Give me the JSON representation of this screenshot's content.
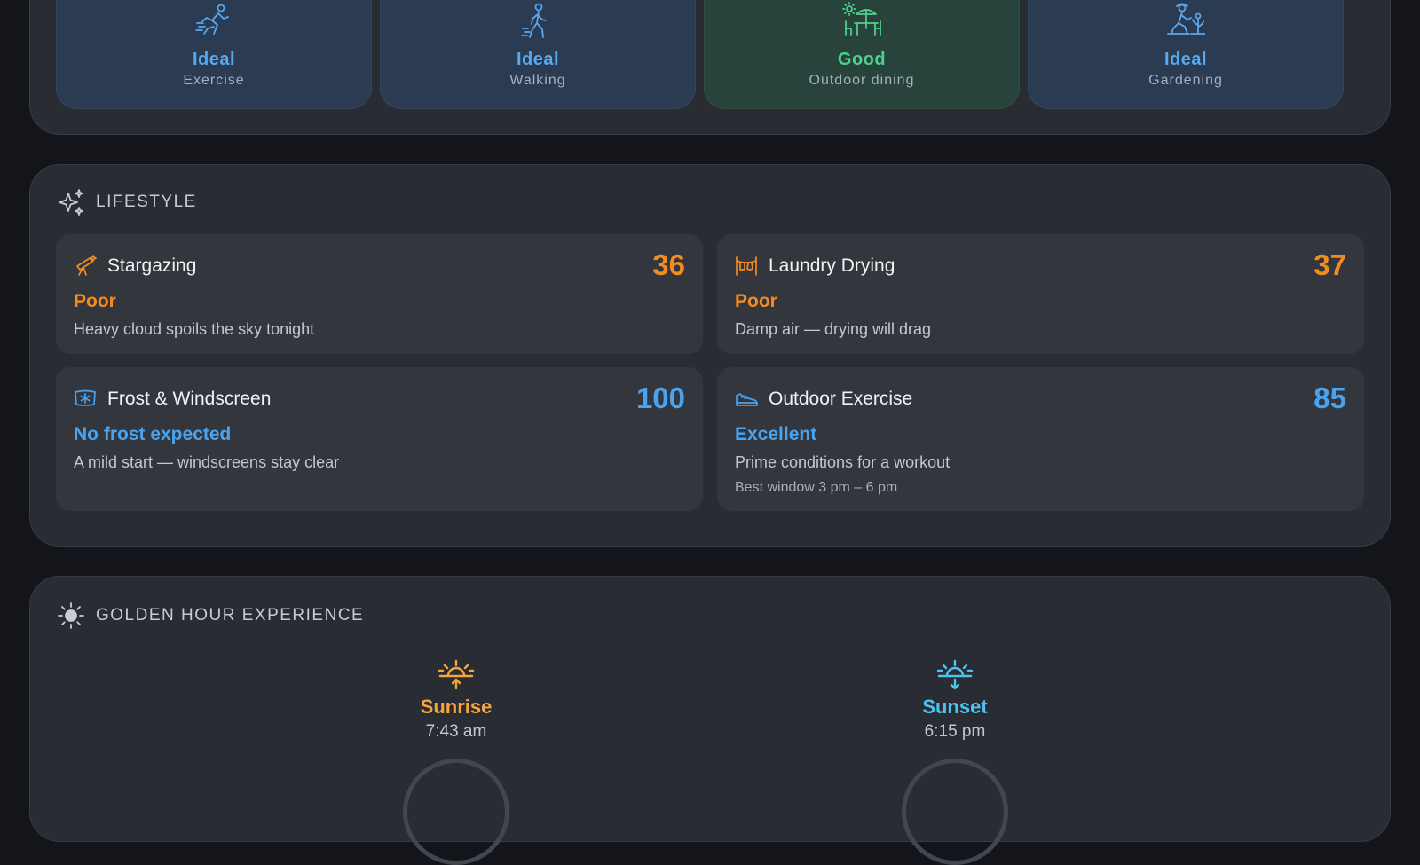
{
  "activities": [
    {
      "status": "Ideal",
      "label": "Exercise",
      "icon": "running-icon",
      "rating": "ideal"
    },
    {
      "status": "Ideal",
      "label": "Walking",
      "icon": "walking-icon",
      "rating": "ideal"
    },
    {
      "status": "Good",
      "label": "Outdoor dining",
      "icon": "outdoor-dining-icon",
      "rating": "good"
    },
    {
      "status": "Ideal",
      "label": "Gardening",
      "icon": "gardening-icon",
      "rating": "ideal"
    }
  ],
  "lifestyle": {
    "title": "LIFESTYLE",
    "icon": "sparkles-icon",
    "cards": [
      {
        "title": "Stargazing",
        "score": "36",
        "status": "Poor",
        "description": "Heavy cloud spoils the sky tonight",
        "icon": "telescope-icon",
        "color": "#f28c1e"
      },
      {
        "title": "Laundry Drying",
        "score": "37",
        "status": "Poor",
        "description": "Damp air — drying will drag",
        "icon": "laundry-line-icon",
        "color": "#f28c1e"
      },
      {
        "title": "Frost & Windscreen",
        "score": "100",
        "status": "No frost expected",
        "description": "A mild start — windscreens stay clear",
        "icon": "windscreen-frost-icon",
        "color": "#49a3ef"
      },
      {
        "title": "Outdoor Exercise",
        "score": "85",
        "status": "Excellent",
        "description": "Prime conditions for a workout",
        "note": "Best window 3 pm – 6 pm",
        "icon": "sneaker-icon",
        "color": "#49a3ef"
      }
    ]
  },
  "golden_hour": {
    "title": "GOLDEN HOUR EXPERIENCE",
    "icon": "sun-icon",
    "sunrise": {
      "label": "Sunrise",
      "time": "7:43 am",
      "icon": "sunrise-icon",
      "color": "#f5a53a"
    },
    "sunset": {
      "label": "Sunset",
      "time": "6:15 pm",
      "icon": "sunset-icon",
      "color": "#4cc3f0"
    }
  }
}
